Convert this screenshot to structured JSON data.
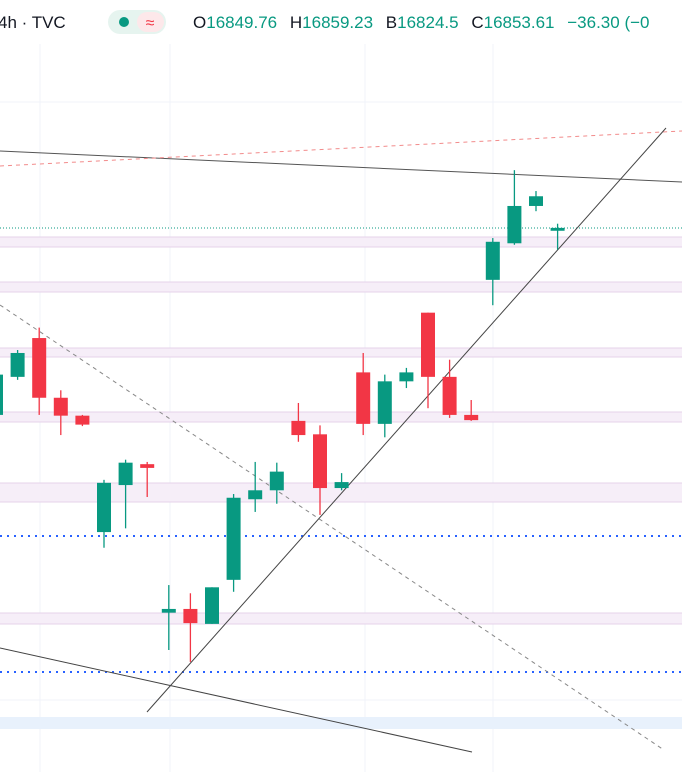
{
  "header": {
    "symbol": "4h · TVC",
    "o_label": "O",
    "h_label": "H",
    "l_label": "B",
    "c_label": "C",
    "change": "−36.30 (−0"
  },
  "chart_data": {
    "type": "candlestick",
    "up_color": "#089981",
    "down_color": "#f23645",
    "ylim": [
      16124.5,
      17159
    ],
    "candles": [
      {
        "open": 16603,
        "high": 16663,
        "low": 16599,
        "close": 16657
      },
      {
        "open": 16654,
        "high": 16690,
        "low": 16650,
        "close": 16686
      },
      {
        "open": 16706,
        "high": 16720,
        "low": 16603,
        "close": 16626
      },
      {
        "open": 16626,
        "high": 16636,
        "low": 16576,
        "close": 16602
      },
      {
        "open": 16602,
        "high": 16603,
        "low": 16588,
        "close": 16590
      },
      {
        "open": 16446,
        "high": 16516,
        "low": 16425,
        "close": 16512
      },
      {
        "open": 16509,
        "high": 16543,
        "low": 16451,
        "close": 16539
      },
      {
        "open": 16537,
        "high": 16540,
        "low": 16493,
        "close": 16532
      },
      {
        "open": 16338,
        "high": 16375,
        "low": 16288,
        "close": 16343
      },
      {
        "open": 16343,
        "high": 16364,
        "low": 16272,
        "close": 16324
      },
      {
        "open": 16323,
        "high": 16372,
        "low": 16323,
        "close": 16372
      },
      {
        "open": 16382,
        "high": 16497,
        "low": 16366,
        "close": 16492
      },
      {
        "open": 16490,
        "high": 16540,
        "low": 16473,
        "close": 16502
      },
      {
        "open": 16502,
        "high": 16539,
        "low": 16484,
        "close": 16527
      },
      {
        "open": 16595,
        "high": 16619,
        "low": 16567,
        "close": 16576
      },
      {
        "open": 16577,
        "high": 16589,
        "low": 16469,
        "close": 16505
      },
      {
        "open": 16505,
        "high": 16525,
        "low": 16502,
        "close": 16513
      },
      {
        "open": 16660,
        "high": 16686,
        "low": 16576,
        "close": 16591
      },
      {
        "open": 16591,
        "high": 16657,
        "low": 16573,
        "close": 16648
      },
      {
        "open": 16648,
        "high": 16666,
        "low": 16639,
        "close": 16660
      },
      {
        "open": 16740,
        "high": 16740,
        "low": 16612,
        "close": 16654
      },
      {
        "open": 16654,
        "high": 16677,
        "low": 16599,
        "close": 16603
      },
      {
        "open": 16603,
        "high": 16623,
        "low": 16595,
        "close": 16596
      },
      {
        "open": 16784,
        "high": 16840,
        "low": 16750,
        "close": 16835
      },
      {
        "open": 16833,
        "high": 16931,
        "low": 16831,
        "close": 16883
      },
      {
        "open": 16883,
        "high": 16903,
        "low": 16876,
        "close": 16896
      },
      {
        "open": 16849.76,
        "high": 16859.23,
        "low": 16824.5,
        "close": 16853.61
      }
    ]
  }
}
